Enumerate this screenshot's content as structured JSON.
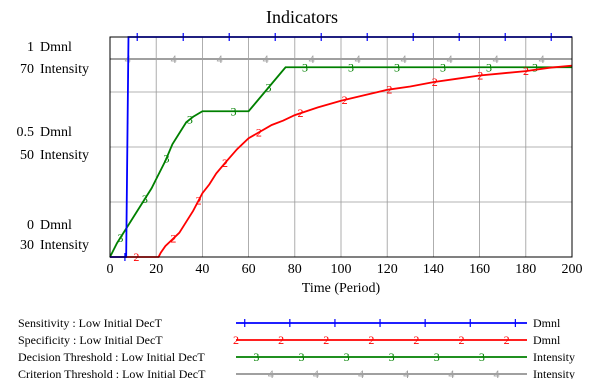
{
  "chart_data": {
    "type": "line",
    "title": "Indicators",
    "xlabel": "Time (Period)",
    "xlim": [
      0,
      200
    ],
    "x_ticks": [
      "0",
      "20",
      "40",
      "60",
      "80",
      "100",
      "120",
      "140",
      "160",
      "180",
      "200"
    ],
    "axes": [
      {
        "unit": "Dmnl",
        "lim": [
          0,
          1
        ],
        "ticks": [
          {
            "value": "1",
            "unit": "Dmnl"
          },
          {
            "value": "0.5",
            "unit": "Dmnl"
          },
          {
            "value": "0",
            "unit": "Dmnl"
          }
        ]
      },
      {
        "unit": "Intensity",
        "lim": [
          30,
          70
        ],
        "ticks": [
          {
            "value": "70",
            "unit": "Intensity"
          },
          {
            "value": "50",
            "unit": "Intensity"
          },
          {
            "value": "30",
            "unit": "Intensity"
          }
        ]
      }
    ],
    "grid": true,
    "series": [
      {
        "name": "Sensitivity : Low Initial DecT",
        "unit": "Dmnl",
        "color": "#0000ff",
        "marker": "1",
        "axis": 0,
        "x": [
          0,
          7,
          8,
          200
        ],
        "y": [
          0,
          0,
          1,
          1
        ]
      },
      {
        "name": "Specificity : Low Initial DecT",
        "unit": "Dmnl",
        "color": "#ff0000",
        "marker": "2",
        "axis": 0,
        "x": [
          0,
          21,
          22,
          24,
          26,
          28,
          30,
          33,
          36,
          38,
          40,
          43,
          46,
          50,
          55,
          60,
          65,
          70,
          75,
          80,
          90,
          100,
          110,
          120,
          130,
          140,
          150,
          160,
          170,
          180,
          190,
          200
        ],
        "y": [
          0,
          0,
          0.02,
          0.05,
          0.07,
          0.09,
          0.11,
          0.16,
          0.21,
          0.25,
          0.29,
          0.33,
          0.38,
          0.43,
          0.49,
          0.54,
          0.57,
          0.6,
          0.62,
          0.645,
          0.68,
          0.71,
          0.735,
          0.76,
          0.775,
          0.795,
          0.81,
          0.825,
          0.835,
          0.845,
          0.86,
          0.87
        ]
      },
      {
        "name": "Decision Threshold : Low Initial DecT",
        "unit": "Intensity",
        "color": "#008000",
        "marker": "3",
        "axis": 1,
        "x": [
          0,
          3,
          6,
          9,
          12,
          15,
          18,
          21,
          24,
          27,
          30,
          33,
          36,
          38,
          40,
          50,
          60,
          62,
          64,
          66,
          68,
          70,
          72,
          74,
          76,
          80,
          90,
          100,
          110,
          120,
          130,
          140,
          150,
          160,
          170,
          180,
          190,
          200
        ],
        "y": [
          30,
          32.5,
          34.5,
          36.5,
          38.5,
          40.5,
          42.5,
          45,
          47.5,
          50.5,
          52.5,
          54.5,
          55.5,
          56,
          56.5,
          56.5,
          56.5,
          57.5,
          58.5,
          59.5,
          60.5,
          61.5,
          62.5,
          63.5,
          64.5,
          64.5,
          64.5,
          64.5,
          64.5,
          64.5,
          64.5,
          64.5,
          64.5,
          64.5,
          64.5,
          64.5,
          64.5,
          64.5
        ]
      },
      {
        "name": "Criterion Threshold : Low Initial DecT",
        "unit": "Intensity",
        "color": "#a0a0a0",
        "marker": "4",
        "axis": 1,
        "x": [
          0,
          200
        ],
        "y": [
          66,
          66
        ]
      }
    ]
  }
}
